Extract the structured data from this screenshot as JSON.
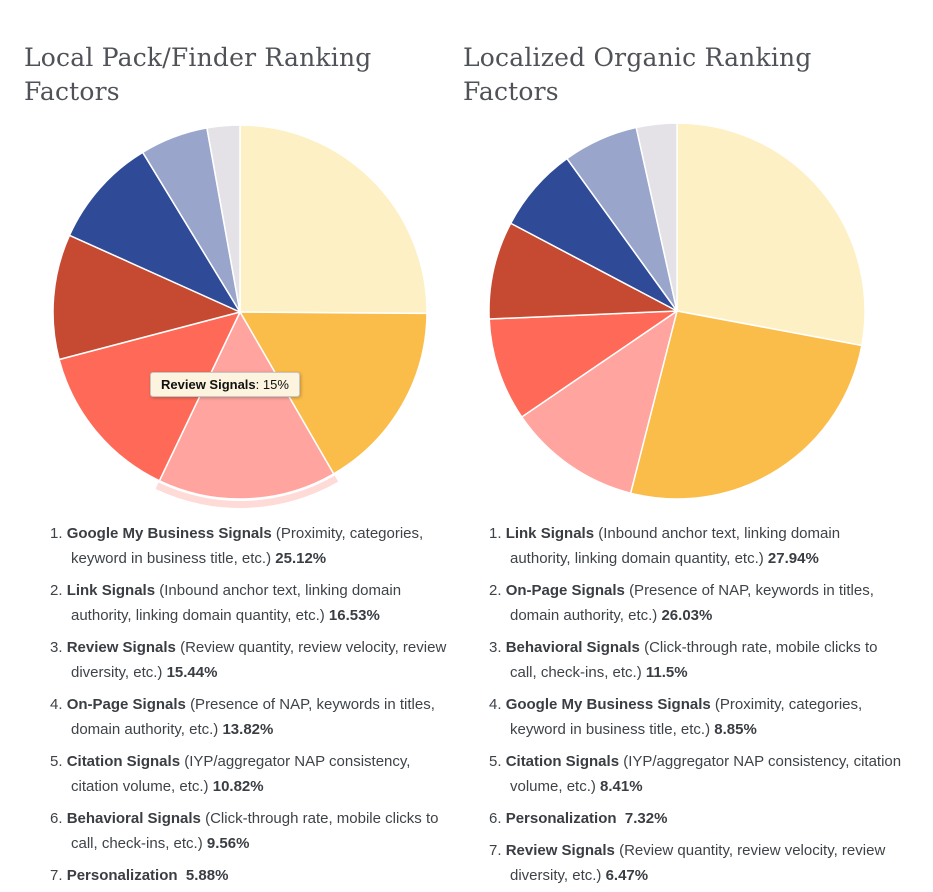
{
  "left": {
    "title": "Local Pack/Finder Ranking Factors",
    "tooltip": {
      "label": "Review Signals",
      "value_text": ": 15%"
    },
    "items": [
      {
        "num": "1.",
        "name": "Google My Business Signals",
        "desc": "(Proximity, categories, keyword in business title, etc.)",
        "pct": "25.12%"
      },
      {
        "num": "2.",
        "name": "Link Signals",
        "desc": "(Inbound anchor text, linking domain authority, linking domain quantity, etc.)",
        "pct": "16.53%"
      },
      {
        "num": "3.",
        "name": "Review Signals",
        "desc": "(Review quantity, review velocity, review diversity, etc.)",
        "pct": "15.44%"
      },
      {
        "num": "4.",
        "name": "On-Page Signals",
        "desc": "(Presence of NAP, keywords in titles, domain authority, etc.)",
        "pct": "13.82%"
      },
      {
        "num": "5.",
        "name": "Citation Signals",
        "desc": "(IYP/aggregator NAP consistency, citation volume, etc.)",
        "pct": "10.82%"
      },
      {
        "num": "6.",
        "name": "Behavioral Signals",
        "desc": "(Click-through rate, mobile clicks to call, check-ins, etc.)",
        "pct": "9.56%"
      },
      {
        "num": "7.",
        "name": "Personalization",
        "desc": "",
        "pct": "5.88%"
      }
    ]
  },
  "right": {
    "title": "Localized Organic Ranking Factors",
    "items": [
      {
        "num": "1.",
        "name": "Link Signals",
        "desc": "(Inbound anchor text, linking domain authority, linking domain quantity, etc.)",
        "pct": "27.94%"
      },
      {
        "num": "2.",
        "name": "On-Page Signals",
        "desc": "(Presence of NAP, keywords in titles, domain authority, etc.)",
        "pct": "26.03%"
      },
      {
        "num": "3.",
        "name": "Behavioral Signals",
        "desc": "(Click-through rate, mobile clicks to call, check-ins, etc.)",
        "pct": "11.5%"
      },
      {
        "num": "4.",
        "name": "Google My Business Signals",
        "desc": "(Proximity, categories, keyword in business title, etc.)",
        "pct": "8.85%"
      },
      {
        "num": "5.",
        "name": "Citation Signals",
        "desc": "(IYP/aggregator NAP consistency, citation volume, etc.)",
        "pct": "8.41%"
      },
      {
        "num": "6.",
        "name": "Personalization",
        "desc": "",
        "pct": "7.32%"
      },
      {
        "num": "7.",
        "name": "Review Signals",
        "desc": "(Review quantity, review velocity, review diversity, etc.)",
        "pct": "6.47%"
      }
    ]
  },
  "colors": {
    "cream": "#FDF0C5",
    "orange": "#FBBD4A",
    "pink": "#FFA49E",
    "tomato": "#FE6A57",
    "brick": "#C64A31",
    "navy": "#2F4A97",
    "periwinkle": "#99A5CB",
    "gray": "#E4E2E6",
    "title_text": "#4f5256",
    "body_text": "#3e4348",
    "tooltip_bg": "#fcf4df"
  },
  "chart_data": [
    {
      "type": "pie",
      "title": "Local Pack/Finder Ranking Factors",
      "labels": [
        "Google My Business Signals",
        "Link Signals",
        "Review Signals",
        "On-Page Signals",
        "Citation Signals",
        "Behavioral Signals",
        "Personalization",
        ""
      ],
      "values": [
        25.12,
        16.53,
        15.44,
        13.82,
        10.82,
        9.56,
        5.88,
        2.83
      ],
      "colors": [
        "#FDF0C5",
        "#FBBD4A",
        "#FFA49E",
        "#FE6A57",
        "#C64A31",
        "#2F4A97",
        "#99A5CB",
        "#E4E2E6"
      ],
      "start_angle": 0,
      "direction": "clockwise",
      "highlight": 2,
      "tooltip": "Review Signals: 15%",
      "legend": "none"
    },
    {
      "type": "pie",
      "title": "Localized Organic Ranking Factors",
      "labels": [
        "Link Signals",
        "On-Page Signals",
        "Behavioral Signals",
        "Google My Business Signals",
        "Citation Signals",
        "Personalization",
        "Review Signals",
        ""
      ],
      "values": [
        27.94,
        26.03,
        11.5,
        8.85,
        8.41,
        7.32,
        6.47,
        3.48
      ],
      "colors": [
        "#FDF0C5",
        "#FBBD4A",
        "#FFA49E",
        "#FE6A57",
        "#C64A31",
        "#2F4A97",
        "#99A5CB",
        "#E4E2E6"
      ],
      "start_angle": 0,
      "direction": "clockwise",
      "highlight": null,
      "tooltip": null,
      "legend": "none"
    }
  ]
}
